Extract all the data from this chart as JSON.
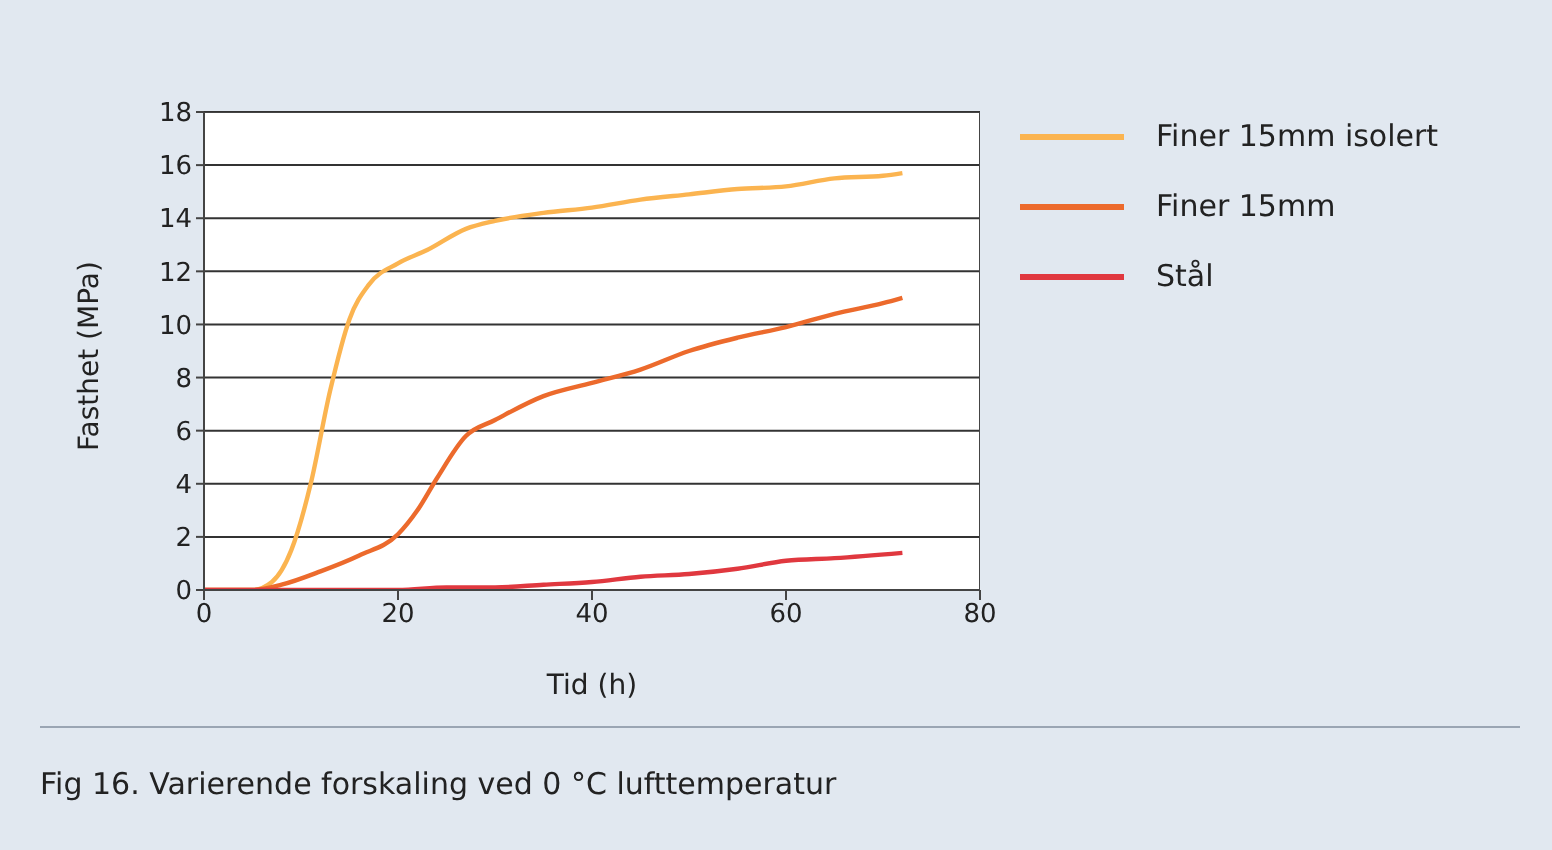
{
  "chart_data": {
    "type": "line",
    "xlabel": "Tid (h)",
    "ylabel": "Fasthet (MPa)",
    "annotations": [
      "Fig 16. Varierende forskaling ved 0 °C lufttemperatur"
    ],
    "xlim": [
      0,
      80
    ],
    "xticks": [
      0,
      20,
      40,
      60,
      80
    ],
    "ylim": [
      0,
      18
    ],
    "yticks": [
      0,
      2,
      4,
      6,
      8,
      10,
      12,
      14,
      16,
      18
    ],
    "grid": "y",
    "legend": "top right",
    "marker": "none",
    "line_style": "solid",
    "series": [
      {
        "name": "Finer 15mm isolert",
        "color": "#fbb450",
        "x": [
          0,
          5,
          7,
          9,
          11,
          13,
          15,
          17,
          20,
          23,
          27,
          30,
          35,
          40,
          45,
          50,
          55,
          60,
          65,
          70,
          72
        ],
        "values": [
          0,
          0,
          0.3,
          1.5,
          4,
          7.5,
          10.2,
          11.5,
          12.3,
          12.8,
          13.6,
          13.9,
          14.2,
          14.4,
          14.7,
          14.9,
          15.1,
          15.2,
          15.5,
          15.6,
          15.7
        ]
      },
      {
        "name": "Finer 15mm",
        "color": "#ec6a2c",
        "x": [
          0,
          5,
          8,
          12,
          16,
          20,
          22,
          24,
          27,
          30,
          35,
          40,
          45,
          50,
          55,
          60,
          65,
          70,
          72
        ],
        "values": [
          0,
          0,
          0.2,
          0.7,
          1.3,
          2.1,
          3,
          4.2,
          5.8,
          6.4,
          7.3,
          7.8,
          8.3,
          9,
          9.5,
          9.9,
          10.4,
          10.8,
          11
        ]
      },
      {
        "name": "Stål",
        "color": "#e0383f",
        "x": [
          0,
          20,
          25,
          30,
          35,
          40,
          45,
          50,
          55,
          60,
          65,
          72
        ],
        "values": [
          0,
          0,
          0.1,
          0.1,
          0.2,
          0.3,
          0.5,
          0.6,
          0.8,
          1.1,
          1.2,
          1.4
        ]
      }
    ]
  }
}
